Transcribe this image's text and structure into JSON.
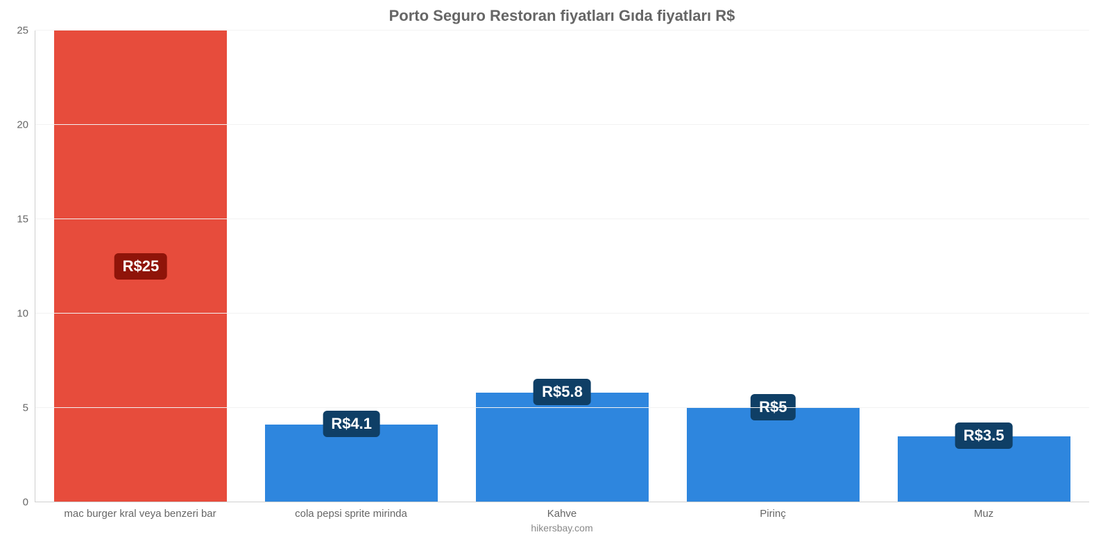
{
  "chart": {
    "type": "bar",
    "title": "Porto Seguro Restoran fiyatları Gıda fiyatları R$",
    "title_fontsize": 22,
    "title_color": "#666666",
    "credit": "hikersbay.com",
    "credit_color": "#888888",
    "background_color": "#ffffff",
    "grid_color": "#f2f2f2",
    "axis_color": "#cfcfcf",
    "tick_font_color": "#666666",
    "tick_fontsize": 15,
    "ylim": [
      0,
      25
    ],
    "ytick_step": 5,
    "yticks": [
      0,
      5,
      10,
      15,
      20,
      25
    ],
    "bar_width": 0.82,
    "categories": [
      "mac burger kral veya benzeri bar",
      "cola pepsi sprite mirinda",
      "Kahve",
      "Pirinç",
      "Muz"
    ],
    "values": [
      25,
      4.1,
      5.8,
      5,
      3.5
    ],
    "bar_colors": [
      "#e74c3c",
      "#2e86de",
      "#2e86de",
      "#2e86de",
      "#2e86de"
    ],
    "data_labels": [
      "R$25",
      "R$4.1",
      "R$5.8",
      "R$5",
      "R$3.5"
    ],
    "data_label_positions": [
      "middle",
      "top",
      "top",
      "top",
      "top"
    ],
    "data_label_bg": [
      "#8f1409",
      "#0f3f66",
      "#0f3f66",
      "#0f3f66",
      "#0f3f66"
    ],
    "data_label_color": "#ffffff",
    "data_label_fontsize": 22
  }
}
